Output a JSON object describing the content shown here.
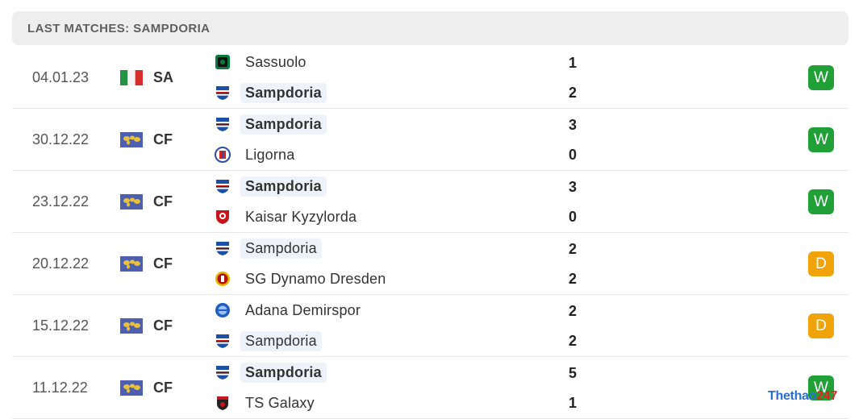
{
  "header": {
    "title": "LAST MATCHES: SAMPDORIA"
  },
  "colors": {
    "win": "#21a038",
    "draw": "#f0a30a",
    "highlight": "#eef3fa"
  },
  "matches": [
    {
      "date": "04.01.23",
      "competition": "SA",
      "competition_icon": "italy-flag-icon",
      "team1": {
        "name": "Sassuolo",
        "icon": "sassuolo-crest-icon",
        "score": "1"
      },
      "team2": {
        "name": "Sampdoria",
        "icon": "sampdoria-crest-icon",
        "score": "2"
      },
      "result": "W"
    },
    {
      "date": "30.12.22",
      "competition": "CF",
      "competition_icon": "world-map-flag-icon",
      "team1": {
        "name": "Sampdoria",
        "icon": "sampdoria-crest-icon",
        "score": "3"
      },
      "team2": {
        "name": "Ligorna",
        "icon": "ligorna-crest-icon",
        "score": "0"
      },
      "result": "W"
    },
    {
      "date": "23.12.22",
      "competition": "CF",
      "competition_icon": "world-map-flag-icon",
      "team1": {
        "name": "Sampdoria",
        "icon": "sampdoria-crest-icon",
        "score": "3"
      },
      "team2": {
        "name": "Kaisar Kyzylorda",
        "icon": "kaisar-crest-icon",
        "score": "0"
      },
      "result": "W"
    },
    {
      "date": "20.12.22",
      "competition": "CF",
      "competition_icon": "world-map-flag-icon",
      "team1": {
        "name": "Sampdoria",
        "icon": "sampdoria-crest-icon",
        "score": "2"
      },
      "team2": {
        "name": "SG Dynamo Dresden",
        "icon": "dynamo-dresden-crest-icon",
        "score": "2"
      },
      "result": "D"
    },
    {
      "date": "15.12.22",
      "competition": "CF",
      "competition_icon": "world-map-flag-icon",
      "team1": {
        "name": "Adana Demirspor",
        "icon": "adana-demirspor-crest-icon",
        "score": "2"
      },
      "team2": {
        "name": "Sampdoria",
        "icon": "sampdoria-crest-icon",
        "score": "2"
      },
      "result": "D"
    },
    {
      "date": "11.12.22",
      "competition": "CF",
      "competition_icon": "world-map-flag-icon",
      "team1": {
        "name": "Sampdoria",
        "icon": "sampdoria-crest-icon",
        "score": "5"
      },
      "team2": {
        "name": "TS Galaxy",
        "icon": "ts-galaxy-crest-icon",
        "score": "1"
      },
      "result": "W"
    }
  ],
  "watermark": {
    "part1": "Thethao",
    "part2": "247"
  }
}
